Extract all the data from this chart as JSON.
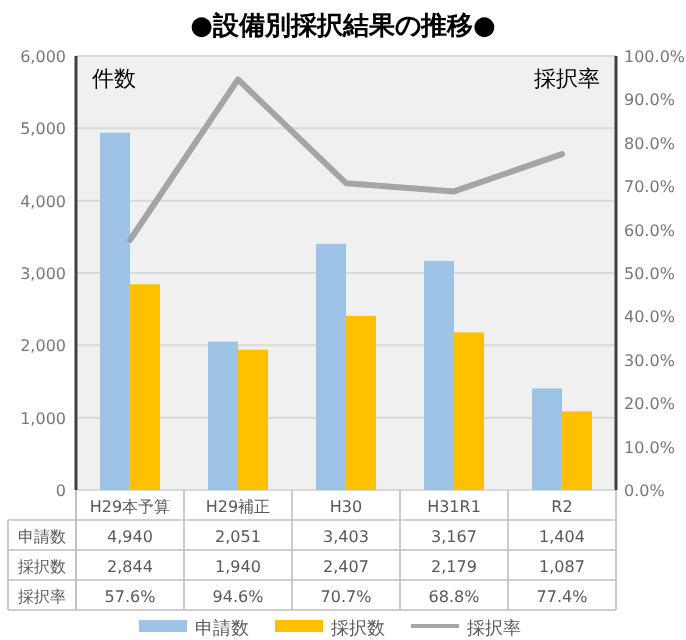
{
  "chart_data": {
    "type": "bar",
    "title": "●設備別採択結果の推移●",
    "ylabel": "件数",
    "y2label": "採択率",
    "categories": [
      "H29本予算",
      "H29補正",
      "H30",
      "H31R1",
      "R2"
    ],
    "series": [
      {
        "name": "申請数",
        "color": "#9dc3e6",
        "values": [
          4940,
          2051,
          3403,
          3167,
          1404
        ],
        "value_labels": [
          "4,940",
          "2,051",
          "3,403",
          "3,167",
          "1,404"
        ]
      },
      {
        "name": "採択数",
        "color": "#ffc000",
        "values": [
          2844,
          1940,
          2407,
          2179,
          1087
        ],
        "value_labels": [
          "2,844",
          "1,940",
          "2,407",
          "2,179",
          "1,087"
        ]
      },
      {
        "name": "採択率",
        "type": "line",
        "axis": "y2",
        "color": "#a5a5a5",
        "values": [
          57.6,
          94.6,
          70.7,
          68.8,
          77.4
        ],
        "value_labels": [
          "57.6%",
          "94.6%",
          "70.7%",
          "68.8%",
          "77.4%"
        ]
      }
    ],
    "ylim": [
      0,
      6000
    ],
    "yticks": [
      0,
      {
        "value": 1000,
        "label": "1,000"
      },
      {
        "value": 2000,
        "label": "2,000"
      },
      {
        "value": 3000,
        "label": "3,000"
      },
      {
        "value": 4000,
        "label": "4,000"
      },
      {
        "value": 5000,
        "label": "5,000"
      },
      {
        "value": 6000,
        "label": "6,000"
      }
    ],
    "y2lim": [
      0,
      100
    ],
    "y2ticks": [
      {
        "value": 0,
        "label": "0.0%"
      },
      {
        "value": 10,
        "label": "10.0%"
      },
      {
        "value": 20,
        "label": "20.0%"
      },
      {
        "value": 30,
        "label": "30.0%"
      },
      {
        "value": 40,
        "label": "40.0%"
      },
      {
        "value": 50,
        "label": "50.0%"
      },
      {
        "value": 60,
        "label": "60.0%"
      },
      {
        "value": 70,
        "label": "70.0%"
      },
      {
        "value": 80,
        "label": "80.0%"
      },
      {
        "value": 90,
        "label": "90.0%"
      },
      {
        "value": 100,
        "label": "100.0%"
      }
    ],
    "grid": "y",
    "legend": "bottom"
  }
}
